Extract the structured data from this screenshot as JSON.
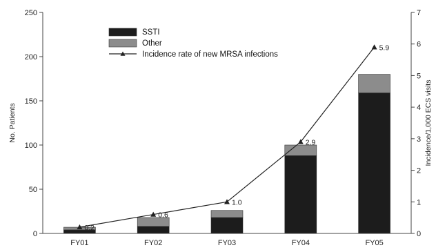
{
  "chart_data": {
    "type": "bar",
    "stacked": true,
    "categories": [
      "FY01",
      "FY02",
      "FY03",
      "FY04",
      "FY05"
    ],
    "series": [
      {
        "name": "SSTI",
        "values": [
          4,
          8,
          18,
          88,
          159
        ],
        "color": "#1c1c1c"
      },
      {
        "name": "Other",
        "values": [
          3,
          10,
          8,
          12,
          21
        ],
        "color": "#8c8c8c"
      }
    ],
    "line_series": {
      "name": "Incidence rate of new MRSA infections",
      "values": [
        0.2,
        0.6,
        1.0,
        2.9,
        5.9
      ],
      "labels": [
        "0.2",
        "0.6",
        "1.0",
        "2.9",
        "5.9"
      ],
      "color": "#222222",
      "marker": "triangle"
    },
    "ylabel": "No. Patients",
    "ylim": [
      0,
      250
    ],
    "yticks": [
      "0",
      "50",
      "100",
      "150",
      "200",
      "250"
    ],
    "ylabel_right": "Incidence/1,000 ECS visits",
    "ylim_right": [
      0,
      7
    ],
    "yticks_right": [
      "0",
      "1",
      "2",
      "3",
      "4",
      "5",
      "6",
      "7"
    ],
    "legend_position": "top-left",
    "grid": false
  }
}
